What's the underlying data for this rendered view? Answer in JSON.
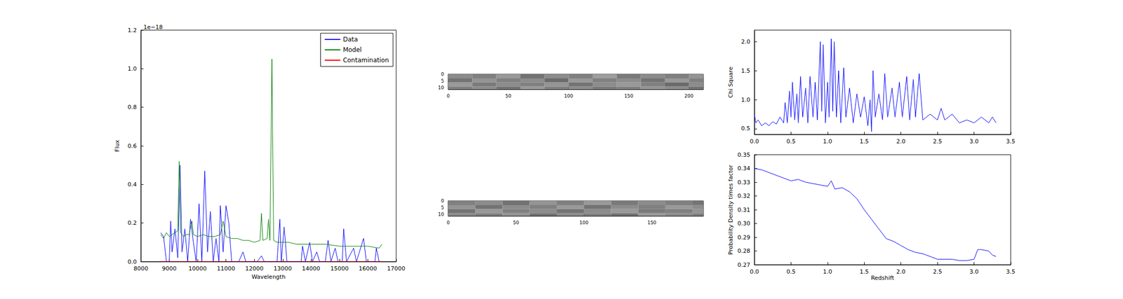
{
  "chart_data": [
    {
      "type": "line",
      "x_label": "Wavelength",
      "y_label": "Flux",
      "annotation": "1e−18",
      "xlim": [
        8000,
        17000
      ],
      "xticks": [
        8000,
        9000,
        10000,
        11000,
        12000,
        13000,
        14000,
        15000,
        16000,
        17000
      ],
      "ylim": [
        0,
        1.2
      ],
      "yticks": [
        {
          "value": 0,
          "label": "0.0"
        },
        0.2,
        0.4,
        0.6,
        0.8,
        {
          "value": 1,
          "label": "1.0"
        },
        1.2
      ],
      "legend": "upper right",
      "series": [
        {
          "name": "Data",
          "color": "#0000ff",
          "x": [
            8700,
            8800,
            8900,
            9000,
            9050,
            9100,
            9200,
            9300,
            9380,
            9450,
            9550,
            9650,
            9750,
            9850,
            9950,
            10050,
            10150,
            10250,
            10350,
            10450,
            10550,
            10650,
            10750,
            10800,
            10900,
            11000,
            11100,
            11200,
            11300,
            11450,
            11600,
            11700,
            12100,
            12250,
            12350,
            12800,
            12900,
            12950,
            13050,
            13150,
            13650,
            13700,
            13800,
            13950,
            14050,
            14200,
            14300,
            14500,
            14600,
            14700,
            14850,
            14950,
            15100,
            15150,
            15250,
            15500,
            15600,
            15850,
            15950,
            16250,
            16300,
            16400
          ],
          "values": [
            0.15,
            0.13,
            0,
            0,
            0.21,
            0.05,
            0.17,
            0.02,
            0.5,
            0.05,
            0.17,
            0,
            0.22,
            0.1,
            0,
            0.3,
            0,
            0.47,
            0.05,
            0.26,
            0,
            0.12,
            0,
            0.29,
            0.05,
            0.29,
            0.2,
            0,
            0,
            0,
            0.05,
            0,
            0,
            0.03,
            0,
            0,
            0.22,
            0,
            0.18,
            0,
            0,
            0.08,
            0,
            0.1,
            0,
            0.05,
            0,
            0,
            0.11,
            0,
            0.07,
            0,
            0,
            0.17,
            0,
            0.07,
            0,
            0.12,
            0,
            0,
            0.07,
            0
          ]
        },
        {
          "name": "Model",
          "color": "#008000",
          "x": [
            8700,
            8800,
            8900,
            9000,
            9100,
            9200,
            9300,
            9350,
            9400,
            9500,
            9600,
            9700,
            9800,
            9850,
            10000,
            10200,
            10400,
            10600,
            10800,
            10900,
            11000,
            11200,
            11400,
            11600,
            11800,
            12000,
            12200,
            12250,
            12300,
            12450,
            12500,
            12550,
            12620,
            12680,
            12800,
            13000,
            13200,
            13500,
            14000,
            14500,
            15000,
            15500,
            16000,
            16400,
            16500
          ],
          "values": [
            0.14,
            0.12,
            0.15,
            0.13,
            0.14,
            0.15,
            0.16,
            0.52,
            0.15,
            0.13,
            0.14,
            0.14,
            0.21,
            0.14,
            0.13,
            0.14,
            0.13,
            0.13,
            0.14,
            0.21,
            0.13,
            0.12,
            0.12,
            0.11,
            0.11,
            0.1,
            0.11,
            0.25,
            0.11,
            0.12,
            0.22,
            0.11,
            1.05,
            0.11,
            0.1,
            0.1,
            0.1,
            0.09,
            0.09,
            0.09,
            0.08,
            0.08,
            0.08,
            0.07,
            0.09
          ]
        },
        {
          "name": "Contamination",
          "color": "#ff0000",
          "x": [
            8700,
            16500
          ],
          "values": [
            0,
            0
          ]
        }
      ]
    },
    {
      "type": "heatmap",
      "xlim": [
        0,
        212
      ],
      "xticks": [
        0,
        50,
        100,
        150,
        200
      ],
      "ylim": [
        0,
        11
      ],
      "yticks": [
        0,
        5,
        10
      ],
      "color_range": [
        0,
        1
      ],
      "x_edges": [
        0,
        20,
        40,
        60,
        80,
        100,
        120,
        140,
        160,
        180,
        200,
        212
      ],
      "y_edges": [
        0,
        3,
        6,
        9,
        11
      ],
      "cells": [
        [
          0.55,
          0.5,
          0.6,
          0.45,
          0.55,
          0.5,
          0.62,
          0.48,
          0.55,
          0.5,
          0.58
        ],
        [
          0.45,
          0.58,
          0.5,
          0.55,
          0.42,
          0.6,
          0.5,
          0.55,
          0.45,
          0.6,
          0.5
        ],
        [
          0.6,
          0.48,
          0.55,
          0.5,
          0.58,
          0.45,
          0.55,
          0.6,
          0.5,
          0.42,
          0.55
        ],
        [
          0.5,
          0.55,
          0.45,
          0.6,
          0.5,
          0.55,
          0.48,
          0.5,
          0.58,
          0.55,
          0.45
        ]
      ]
    },
    {
      "type": "heatmap",
      "xlim": [
        0,
        188
      ],
      "xticks": [
        0,
        50,
        100,
        150
      ],
      "ylim": [
        0,
        11
      ],
      "yticks": [
        0,
        5,
        10
      ],
      "color_range": [
        0,
        1
      ],
      "x_edges": [
        0,
        20,
        40,
        60,
        80,
        100,
        120,
        140,
        160,
        180,
        188
      ],
      "y_edges": [
        0,
        3,
        6,
        9,
        11
      ],
      "cells": [
        [
          0.5,
          0.55,
          0.45,
          0.58,
          0.5,
          0.6,
          0.48,
          0.55,
          0.5,
          0.45
        ],
        [
          0.58,
          0.45,
          0.55,
          0.5,
          0.6,
          0.45,
          0.55,
          0.5,
          0.6,
          0.55
        ],
        [
          0.45,
          0.6,
          0.5,
          0.55,
          0.45,
          0.55,
          0.6,
          0.48,
          0.5,
          0.58
        ],
        [
          0.55,
          0.5,
          0.58,
          0.45,
          0.55,
          0.5,
          0.45,
          0.6,
          0.55,
          0.5
        ]
      ]
    },
    {
      "type": "line",
      "y_label": "Chi Square",
      "xlim": [
        0,
        3.5
      ],
      "xticks": [
        {
          "value": 0,
          "label": "0.0"
        },
        0.5,
        {
          "value": 1,
          "label": "1.0"
        },
        1.5,
        {
          "value": 2,
          "label": "2.0"
        },
        2.5,
        {
          "value": 3,
          "label": "3.0"
        },
        3.5
      ],
      "ylim": [
        0.4,
        2.2
      ],
      "yticks": [
        0.5,
        {
          "value": 1,
          "label": "1.0"
        },
        1.5,
        {
          "value": 2,
          "label": "2.0"
        }
      ],
      "series": [
        {
          "color": "#0000ff",
          "x": [
            0,
            0.02,
            0.05,
            0.1,
            0.15,
            0.2,
            0.25,
            0.3,
            0.35,
            0.4,
            0.42,
            0.45,
            0.48,
            0.5,
            0.52,
            0.55,
            0.58,
            0.6,
            0.63,
            0.66,
            0.7,
            0.73,
            0.76,
            0.8,
            0.83,
            0.86,
            0.9,
            0.92,
            0.94,
            0.97,
            1,
            1.02,
            1.05,
            1.07,
            1.09,
            1.12,
            1.15,
            1.18,
            1.22,
            1.25,
            1.3,
            1.35,
            1.4,
            1.45,
            1.5,
            1.55,
            1.58,
            1.6,
            1.62,
            1.65,
            1.7,
            1.75,
            1.78,
            1.82,
            1.88,
            1.92,
            1.98,
            2.02,
            2.08,
            2.12,
            2.17,
            2.2,
            2.25,
            2.3,
            2.4,
            2.5,
            2.55,
            2.6,
            2.7,
            2.8,
            2.9,
            3,
            3.1,
            3.2,
            3.25,
            3.3
          ],
          "values": [
            0.75,
            0.6,
            0.65,
            0.55,
            0.6,
            0.55,
            0.62,
            0.58,
            0.7,
            0.6,
            0.95,
            0.6,
            1.15,
            0.7,
            1.3,
            0.65,
            1.1,
            0.6,
            1.4,
            0.7,
            1.2,
            0.6,
            1.4,
            0.7,
            1.3,
            0.65,
            2,
            0.8,
            1.95,
            0.6,
            1.3,
            0.7,
            2.05,
            0.8,
            2,
            0.7,
            1.5,
            0.6,
            1.55,
            0.7,
            1.2,
            0.6,
            1.1,
            0.7,
            1.05,
            0.55,
            1,
            0.45,
            1.5,
            0.7,
            1.1,
            0.65,
            1.45,
            0.7,
            1.2,
            0.7,
            1.3,
            0.7,
            1.4,
            0.65,
            1.35,
            0.7,
            1.45,
            0.65,
            0.75,
            0.65,
            0.85,
            0.65,
            0.75,
            0.6,
            0.65,
            0.6,
            0.7,
            0.6,
            0.7,
            0.6
          ]
        }
      ]
    },
    {
      "type": "line",
      "x_label": "Redshift",
      "y_label": "Probability Density times factor",
      "xlim": [
        0,
        3.5
      ],
      "xticks": [
        {
          "value": 0,
          "label": "0.0"
        },
        0.5,
        {
          "value": 1,
          "label": "1.0"
        },
        1.5,
        {
          "value": 2,
          "label": "2.0"
        },
        2.5,
        {
          "value": 3,
          "label": "3.0"
        },
        3.5
      ],
      "ylim": [
        0.27,
        0.35
      ],
      "yticks": [
        0.27,
        0.28,
        0.29,
        {
          "value": 0.3,
          "label": "0.30"
        },
        0.31,
        0.32,
        0.33,
        0.34,
        0.35
      ],
      "series": [
        {
          "color": "#0000ff",
          "x": [
            0,
            0.1,
            0.2,
            0.3,
            0.4,
            0.5,
            0.6,
            0.7,
            0.8,
            0.9,
            1,
            1.05,
            1.1,
            1.2,
            1.3,
            1.4,
            1.5,
            1.6,
            1.7,
            1.8,
            1.9,
            2,
            2.1,
            2.2,
            2.3,
            2.4,
            2.5,
            2.6,
            2.7,
            2.8,
            2.9,
            3,
            3.05,
            3.1,
            3.2,
            3.25,
            3.3
          ],
          "values": [
            0.34,
            0.339,
            0.337,
            0.335,
            0.333,
            0.331,
            0.332,
            0.33,
            0.329,
            0.328,
            0.327,
            0.331,
            0.325,
            0.326,
            0.323,
            0.318,
            0.31,
            0.303,
            0.296,
            0.289,
            0.287,
            0.284,
            0.281,
            0.279,
            0.278,
            0.276,
            0.274,
            0.274,
            0.274,
            0.273,
            0.273,
            0.274,
            0.281,
            0.281,
            0.28,
            0.277,
            0.276
          ]
        }
      ]
    }
  ]
}
